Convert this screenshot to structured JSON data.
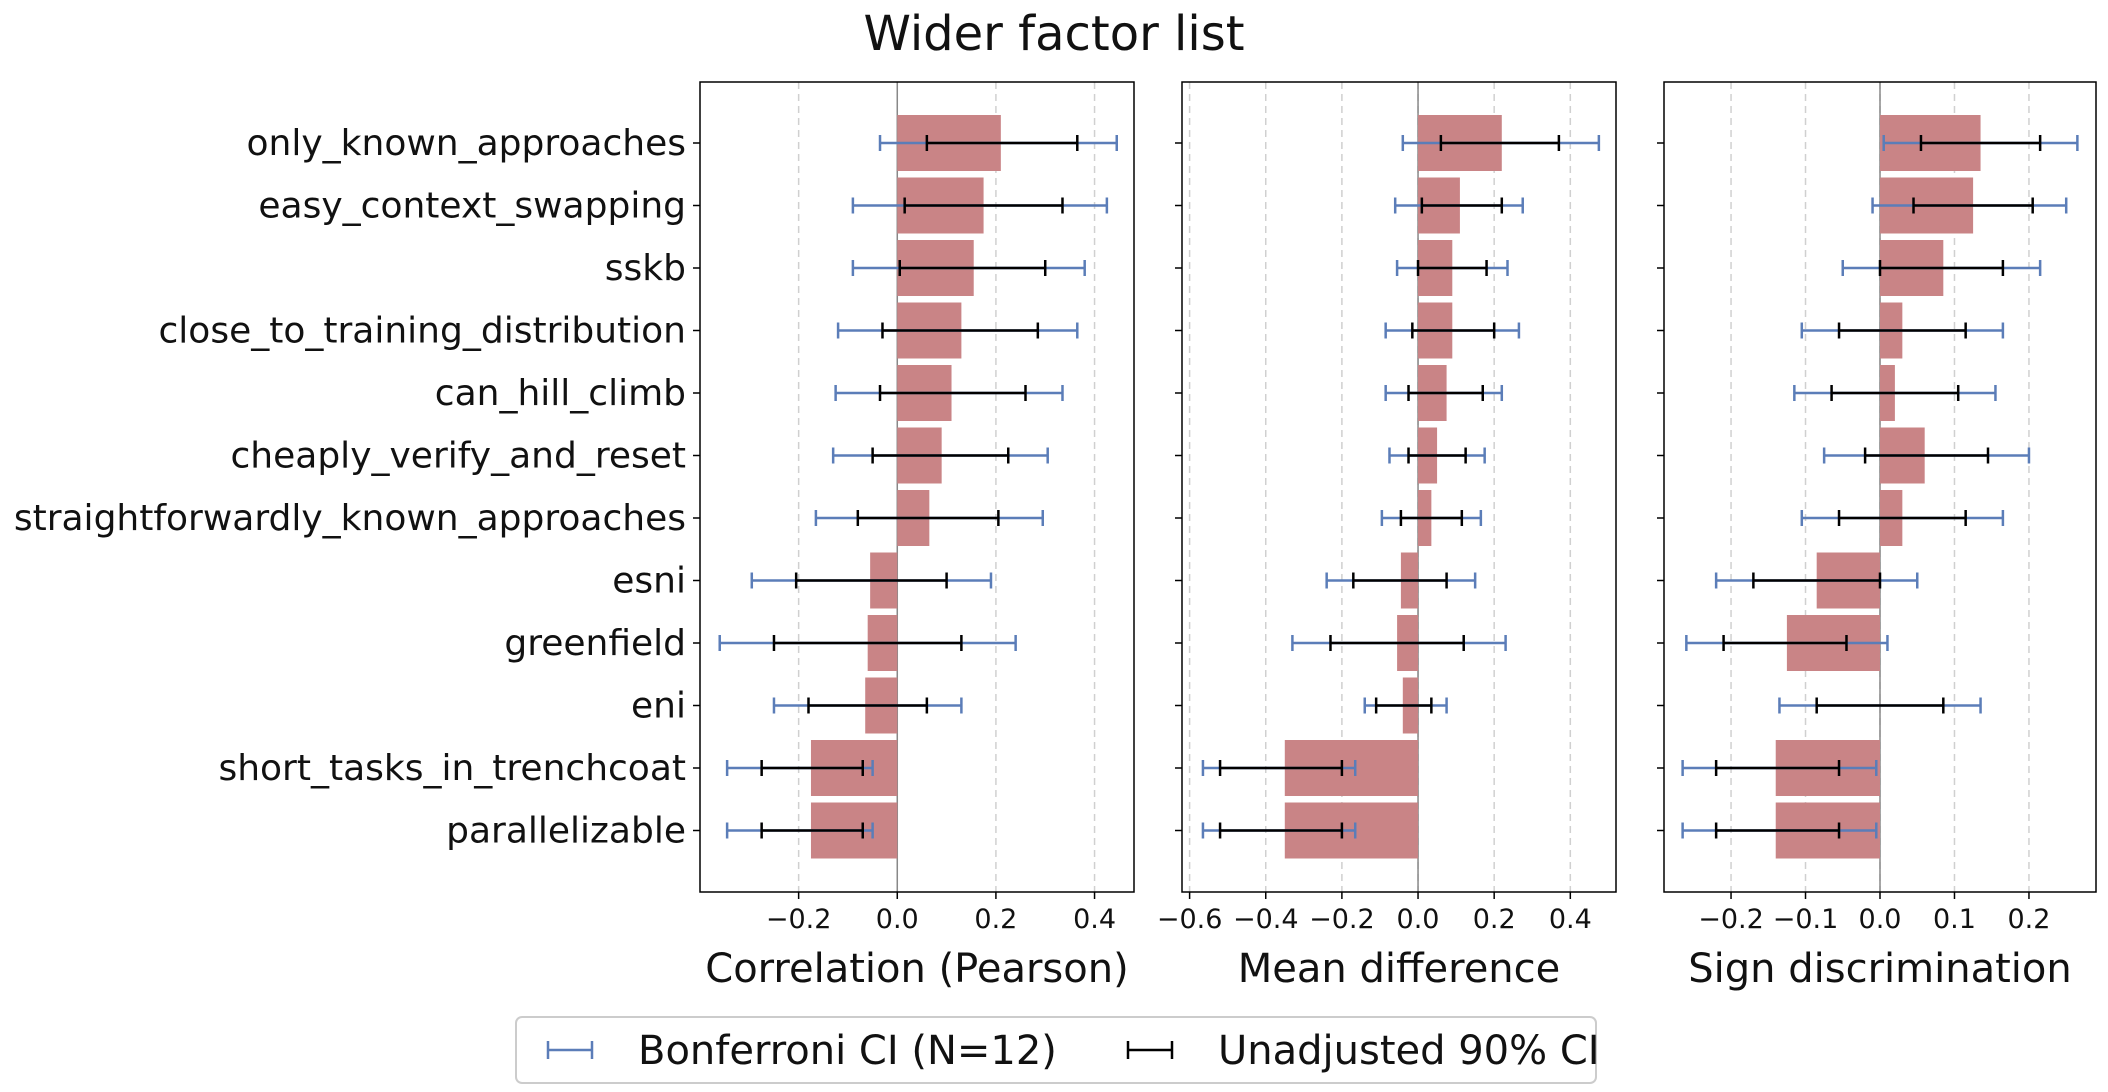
{
  "chart_data": {
    "type": "bar",
    "title": "Wider factor list",
    "categories": [
      "only_known_approaches",
      "easy_context_swapping",
      "sskb",
      "close_to_training_distribution",
      "can_hill_climb",
      "cheaply_verify_and_reset",
      "straightforwardly_known_approaches",
      "esni",
      "greenfield",
      "eni",
      "short_tasks_in_trenchcoat",
      "parallelizable"
    ],
    "panels": [
      {
        "xlabel": "Correlation (Pearson)",
        "xlim": [
          -0.4,
          0.48
        ],
        "xticks": [
          -0.2,
          0.0,
          0.2,
          0.4
        ],
        "xtick_labels": [
          "−0.2",
          "0.0",
          "0.2",
          "0.4"
        ],
        "values": [
          0.21,
          0.175,
          0.155,
          0.13,
          0.11,
          0.09,
          0.065,
          -0.055,
          -0.06,
          -0.065,
          -0.175,
          -0.175
        ],
        "unadjusted_ci": [
          [
            0.06,
            0.365
          ],
          [
            0.015,
            0.335
          ],
          [
            0.005,
            0.3
          ],
          [
            -0.03,
            0.285
          ],
          [
            -0.035,
            0.26
          ],
          [
            -0.05,
            0.225
          ],
          [
            -0.08,
            0.205
          ],
          [
            -0.205,
            0.1
          ],
          [
            -0.25,
            0.13
          ],
          [
            -0.18,
            0.06
          ],
          [
            -0.275,
            -0.07
          ],
          [
            -0.275,
            -0.07
          ]
        ],
        "bonferroni_ci": [
          [
            -0.035,
            0.445
          ],
          [
            -0.09,
            0.425
          ],
          [
            -0.09,
            0.38
          ],
          [
            -0.12,
            0.365
          ],
          [
            -0.125,
            0.335
          ],
          [
            -0.13,
            0.305
          ],
          [
            -0.165,
            0.295
          ],
          [
            -0.295,
            0.19
          ],
          [
            -0.36,
            0.24
          ],
          [
            -0.25,
            0.13
          ],
          [
            -0.345,
            -0.05
          ],
          [
            -0.345,
            -0.05
          ]
        ]
      },
      {
        "xlabel": "Mean difference",
        "xlim": [
          -0.62,
          0.52
        ],
        "xticks": [
          -0.6,
          -0.4,
          -0.2,
          0.0,
          0.2,
          0.4
        ],
        "xtick_labels": [
          "−0.6",
          "−0.4",
          "−0.2",
          "0.0",
          "0.2",
          "0.4"
        ],
        "values": [
          0.22,
          0.11,
          0.09,
          0.09,
          0.075,
          0.05,
          0.035,
          -0.045,
          -0.055,
          -0.04,
          -0.35,
          -0.35
        ],
        "unadjusted_ci": [
          [
            0.06,
            0.37
          ],
          [
            0.01,
            0.22
          ],
          [
            0.0,
            0.18
          ],
          [
            -0.015,
            0.2
          ],
          [
            -0.025,
            0.17
          ],
          [
            -0.025,
            0.125
          ],
          [
            -0.045,
            0.115
          ],
          [
            -0.17,
            0.075
          ],
          [
            -0.23,
            0.12
          ],
          [
            -0.11,
            0.035
          ],
          [
            -0.52,
            -0.2
          ],
          [
            -0.52,
            -0.2
          ]
        ],
        "bonferroni_ci": [
          [
            -0.04,
            0.475
          ],
          [
            -0.06,
            0.275
          ],
          [
            -0.055,
            0.235
          ],
          [
            -0.085,
            0.265
          ],
          [
            -0.085,
            0.22
          ],
          [
            -0.075,
            0.175
          ],
          [
            -0.095,
            0.165
          ],
          [
            -0.24,
            0.15
          ],
          [
            -0.33,
            0.23
          ],
          [
            -0.14,
            0.075
          ],
          [
            -0.565,
            -0.165
          ],
          [
            -0.565,
            -0.165
          ]
        ]
      },
      {
        "xlabel": "Sign discrimination",
        "xlim": [
          -0.29,
          0.29
        ],
        "xticks": [
          -0.2,
          -0.1,
          0.0,
          0.1,
          0.2
        ],
        "xtick_labels": [
          "−0.2",
          "−0.1",
          "0.0",
          "0.1",
          "0.2"
        ],
        "values": [
          0.135,
          0.125,
          0.085,
          0.03,
          0.02,
          0.06,
          0.03,
          -0.085,
          -0.125,
          0.0,
          -0.14,
          -0.14
        ],
        "unadjusted_ci": [
          [
            0.055,
            0.215
          ],
          [
            0.045,
            0.205
          ],
          [
            0.0,
            0.165
          ],
          [
            -0.055,
            0.115
          ],
          [
            -0.065,
            0.105
          ],
          [
            -0.02,
            0.145
          ],
          [
            -0.055,
            0.115
          ],
          [
            -0.17,
            0.0
          ],
          [
            -0.21,
            -0.045
          ],
          [
            -0.085,
            0.085
          ],
          [
            -0.22,
            -0.055
          ],
          [
            -0.22,
            -0.055
          ]
        ],
        "bonferroni_ci": [
          [
            0.005,
            0.265
          ],
          [
            -0.01,
            0.25
          ],
          [
            -0.05,
            0.215
          ],
          [
            -0.105,
            0.165
          ],
          [
            -0.115,
            0.155
          ],
          [
            -0.075,
            0.2
          ],
          [
            -0.105,
            0.165
          ],
          [
            -0.22,
            0.05
          ],
          [
            -0.26,
            0.01
          ],
          [
            -0.135,
            0.135
          ],
          [
            -0.265,
            -0.005
          ],
          [
            -0.265,
            -0.005
          ]
        ]
      }
    ],
    "legend": {
      "position": "bottom-center",
      "entries": [
        {
          "label": "Bonferroni CI (N=12)",
          "color": "#5b7db8"
        },
        {
          "label": "Unadjusted 90% CI",
          "color": "#000000"
        }
      ]
    },
    "grid": "x-dashed",
    "colors": {
      "bar": "#c98486",
      "bonferroni": "#5b7db8",
      "unadjusted": "#000000"
    }
  }
}
